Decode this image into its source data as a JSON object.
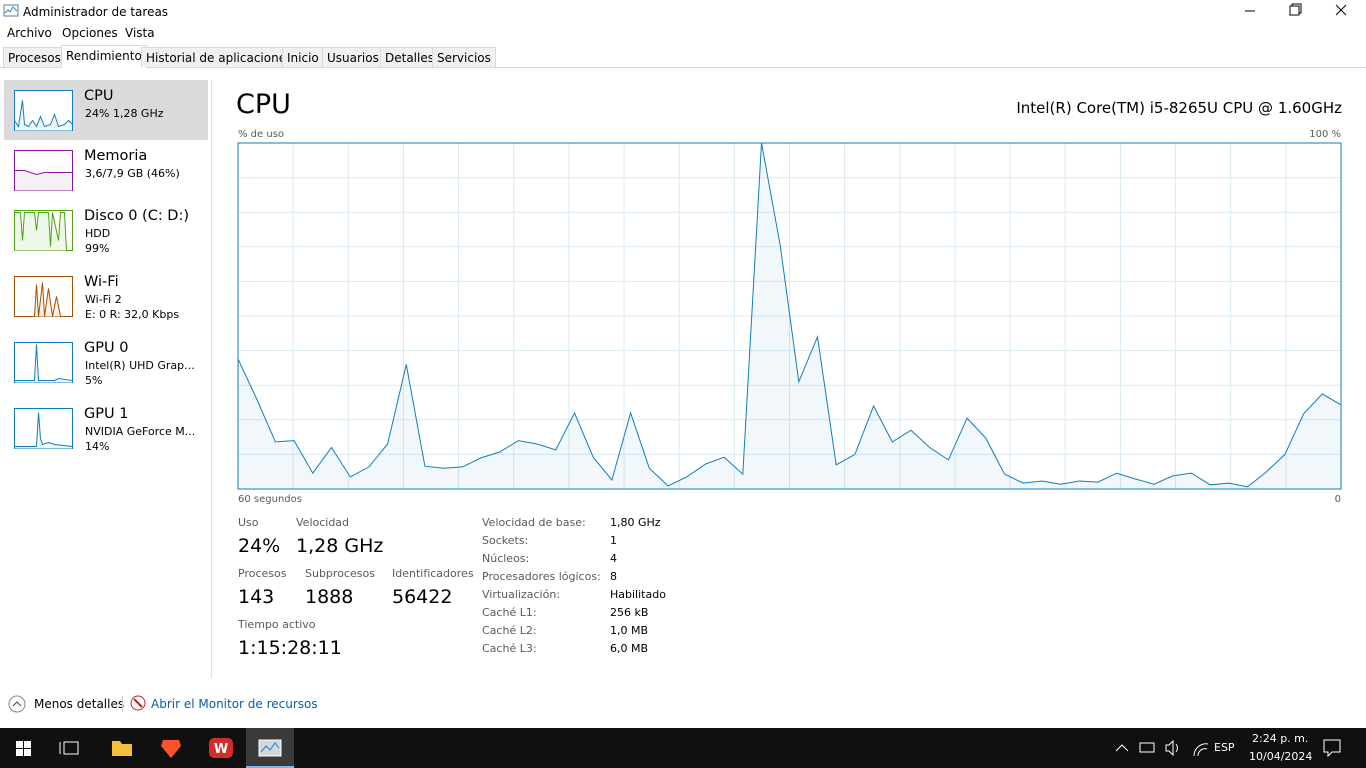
{
  "window": {
    "title": "Administrador de tareas"
  },
  "menu": [
    "Archivo",
    "Opciones",
    "Vista"
  ],
  "tabs": [
    "Procesos",
    "Rendimiento",
    "Historial de aplicaciones",
    "Inicio",
    "Usuarios",
    "Detalles",
    "Servicios"
  ],
  "sidebar": [
    {
      "name": "CPU",
      "lines": [
        "24% 1,28 GHz"
      ]
    },
    {
      "name": "Memoria",
      "lines": [
        "3,6/7,9 GB (46%)"
      ]
    },
    {
      "name": "Disco 0 (C: D:)",
      "lines": [
        "HDD",
        "99%"
      ]
    },
    {
      "name": "Wi-Fi",
      "lines": [
        "Wi-Fi 2",
        "E: 0 R: 32,0 Kbps"
      ]
    },
    {
      "name": "GPU 0",
      "lines": [
        "Intel(R) UHD Grap...",
        "5%"
      ]
    },
    {
      "name": "GPU 1",
      "lines": [
        "NVIDIA GeForce M...",
        "14%"
      ]
    }
  ],
  "main": {
    "title": "CPU",
    "processor": "Intel(R) Core(TM) i5-8265U CPU @ 1.60GHz"
  },
  "graph": {
    "type": "area",
    "y_label": "% de uso",
    "ylim": [
      0,
      100
    ],
    "yticks": [
      {
        "value": 100,
        "label": "100 %"
      }
    ],
    "xlim": [
      60,
      0
    ],
    "xticks": [
      {
        "value": 60,
        "label": "60 segundos"
      },
      0
    ],
    "color": "#117dbb",
    "values": [
      37.6,
      26,
      13.6,
      14,
      4.6,
      12,
      3.5,
      6.4,
      13,
      36,
      6.6,
      6,
      6.4,
      9,
      10.7,
      14,
      13,
      11.3,
      22,
      9.2,
      2.6,
      22,
      6,
      0.9,
      3.5,
      7.2,
      9.2,
      4.3,
      100,
      70.5,
      31,
      44,
      7,
      10,
      24,
      13.6,
      17,
      12,
      8.4,
      20.5,
      14.7,
      4.3,
      1.7,
      2.3,
      1.4,
      2.3,
      2,
      4.6,
      2.9,
      1.4,
      3.8,
      4.6,
      1.2,
      1.7,
      0.6,
      4.9,
      10,
      21.7,
      27.5,
      24.3
    ]
  },
  "stats": [
    [
      {
        "label": "Uso",
        "value": "24%"
      },
      {
        "label": "Velocidad",
        "value": "1,28 GHz"
      }
    ],
    [
      {
        "label": "Procesos",
        "value": "143"
      },
      {
        "label": "Subprocesos",
        "value": "1888"
      },
      {
        "label": "Identificadores",
        "value": "56422"
      }
    ],
    [
      {
        "label": "Tiempo activo",
        "value": "1:15:28:11"
      }
    ]
  ],
  "details": [
    [
      "Velocidad de base:",
      "1,80 GHz"
    ],
    [
      "Sockets:",
      "1"
    ],
    [
      "Núcleos:",
      "4"
    ],
    [
      "Procesadores lógicos:",
      "8"
    ],
    [
      "Virtualización:",
      "Habilitado"
    ],
    [
      "Caché L1:",
      "256 kB"
    ],
    [
      "Caché L2:",
      "1,0 MB"
    ],
    [
      "Caché L3:",
      "6,0 MB"
    ]
  ],
  "footer": {
    "less": "Menos detalles",
    "monitor": "Abrir el Monitor de recursos"
  },
  "taskbar": {
    "lang": "ESP",
    "time": "2:24 p. m.",
    "date": "10/04/2024"
  }
}
